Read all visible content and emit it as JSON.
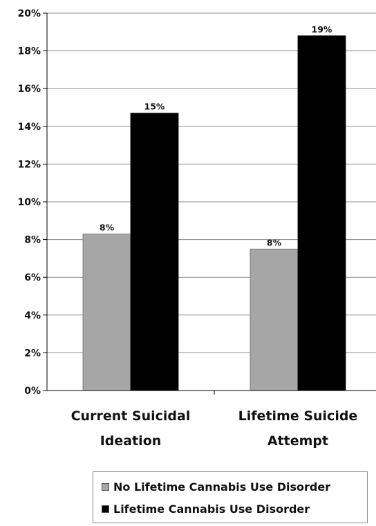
{
  "chart_data": {
    "type": "bar",
    "categories": [
      "Current Suicidal Ideation",
      "Lifetime Suicide Attempt"
    ],
    "category_lines": [
      [
        "Current Suicidal",
        "Ideation"
      ],
      [
        "Lifetime Suicide",
        "Attempt"
      ]
    ],
    "series": [
      {
        "name": "No Lifetime Cannabis Use Disorder",
        "values": [
          8.3,
          7.5
        ],
        "labels": [
          "8%",
          "8%"
        ],
        "color": "#a6a6a6"
      },
      {
        "name": "Lifetime Cannabis Use Disorder",
        "values": [
          14.7,
          18.8
        ],
        "labels": [
          "15%",
          "19%"
        ],
        "color": "#000000"
      }
    ],
    "ylim": [
      0,
      20
    ],
    "yticks": [
      0,
      2,
      4,
      6,
      8,
      10,
      12,
      14,
      16,
      18,
      20
    ],
    "ytick_labels": [
      "0%",
      "2%",
      "4%",
      "6%",
      "8%",
      "10%",
      "12%",
      "14%",
      "16%",
      "18%",
      "20%"
    ],
    "grid": true,
    "legend_position": "bottom"
  }
}
